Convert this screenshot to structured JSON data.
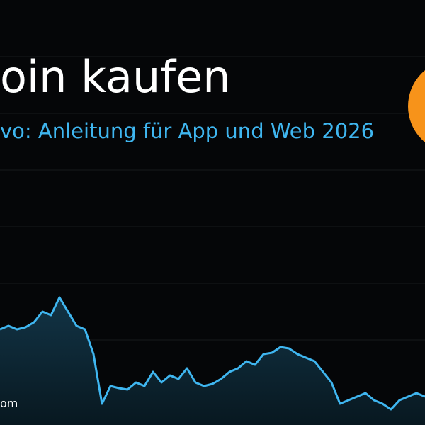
{
  "header": {
    "title": "oin kaufen",
    "subtitle": "vo: Anleitung für App und Web 2026"
  },
  "footer": {
    "text": "om"
  },
  "chart_data": {
    "type": "line",
    "color": "#3fb6f0",
    "values": [
      135,
      140,
      135,
      138,
      145,
      160,
      155,
      180,
      160,
      140,
      135,
      100,
      30,
      55,
      52,
      50,
      60,
      55,
      75,
      60,
      70,
      65,
      80,
      60,
      55,
      58,
      65,
      75,
      80,
      90,
      85,
      100,
      102,
      110,
      108,
      100,
      95,
      90,
      75,
      60,
      30,
      35,
      40,
      45,
      35,
      30,
      22,
      35,
      40,
      45,
      40
    ]
  }
}
